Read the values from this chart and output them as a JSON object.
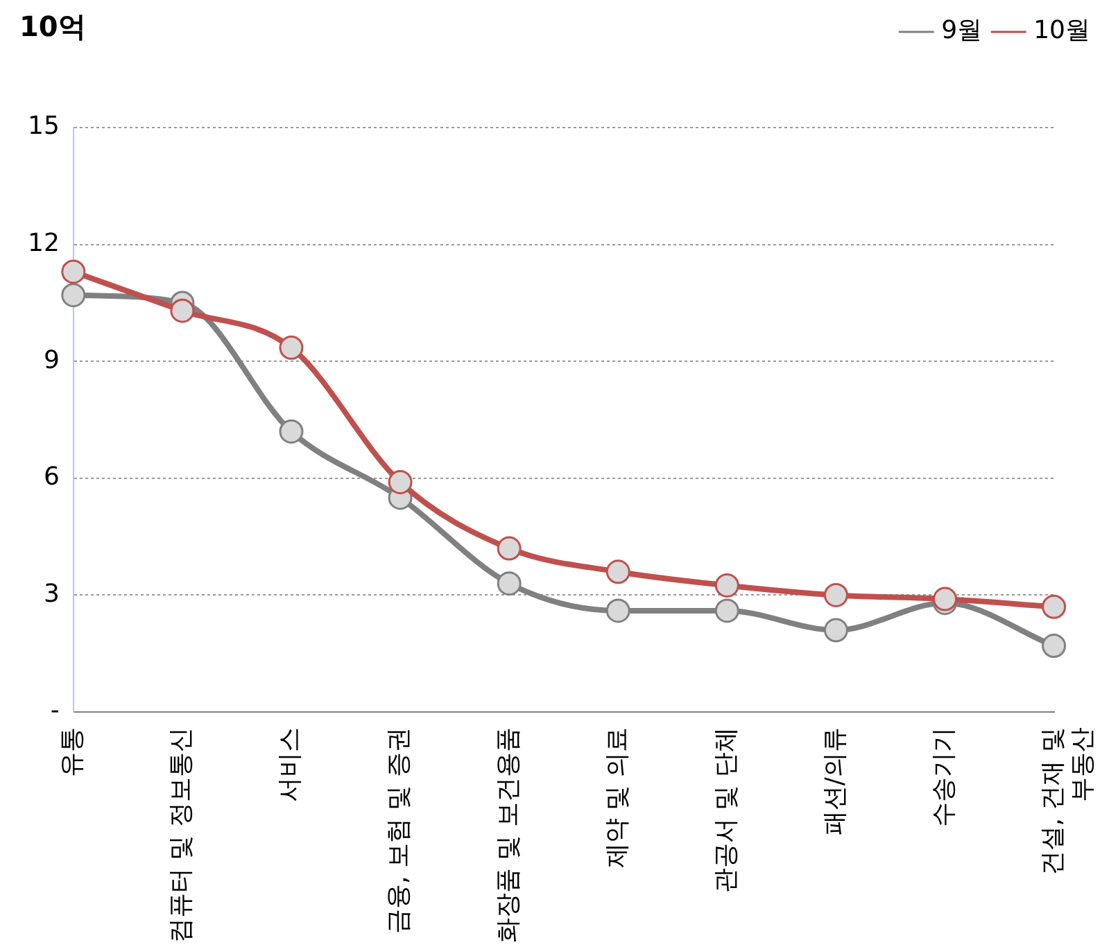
{
  "chart_data": {
    "type": "line",
    "ylabel": "10억",
    "categories": [
      "유통",
      "컴퓨터 및 정보통신",
      "서비스",
      "금융, 보험 및 증권",
      "화장품 및 보건용품",
      "제약 및 의료",
      "관공서 및 단체",
      "패션/의류",
      "수송기기",
      "건설, 건재 및 부동산"
    ],
    "series": [
      {
        "name": "9월",
        "color": "#808080",
        "values": [
          10.7,
          10.5,
          7.2,
          5.5,
          3.3,
          2.6,
          2.6,
          2.1,
          2.8,
          1.7
        ]
      },
      {
        "name": "10월",
        "color": "#c0504d",
        "values": [
          11.3,
          10.3,
          9.35,
          5.9,
          4.2,
          3.6,
          3.25,
          3.0,
          2.9,
          2.7
        ]
      }
    ],
    "ylim": [
      0,
      15
    ],
    "yticks": [
      {
        "value": 0,
        "label": "-"
      },
      3,
      6,
      9,
      12,
      15
    ],
    "grid": "y",
    "legend": "top right",
    "marker": "circle",
    "line_style": "solid"
  }
}
